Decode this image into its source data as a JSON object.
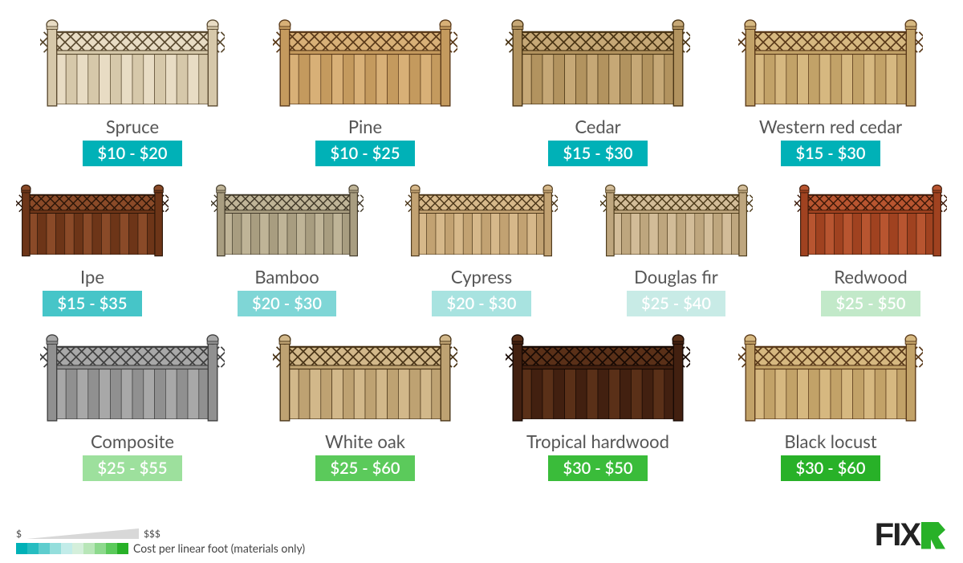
{
  "legend": {
    "low_symbol": "$",
    "high_symbol": "$$$",
    "caption": "Cost per linear foot (materials only)",
    "swatches": [
      "#00b1b7",
      "#26bdc1",
      "#5ecdce",
      "#94dedc",
      "#c2ece9",
      "#d4efdb",
      "#b8e6b8",
      "#8dd98d",
      "#5bca5b",
      "#28b128"
    ]
  },
  "logo_text": "FIX",
  "rows": [
    [
      {
        "name": "Spruce",
        "price": "$10 - $20",
        "price_bg": "#00b1b7",
        "wood_light": "#e8dcc4",
        "wood_dark": "#d6c8aa",
        "line": "#5a4a30"
      },
      {
        "name": "Pine",
        "price": "$10 - $25",
        "price_bg": "#00b1b7",
        "wood_light": "#d8b077",
        "wood_dark": "#c49a5e",
        "line": "#5a3a1a"
      },
      {
        "name": "Cedar",
        "price": "$15 - $30",
        "price_bg": "#00b1b7",
        "wood_light": "#c6a876",
        "wood_dark": "#b2935f",
        "line": "#4a3515"
      },
      {
        "name": "Western red cedar",
        "price": "$15 - $30",
        "price_bg": "#00b1b7",
        "wood_light": "#d6b880",
        "wood_dark": "#c2a268",
        "line": "#5a3a1a"
      }
    ],
    [
      {
        "name": "Ipe",
        "price": "$15 - $35",
        "price_bg": "#46c5c8",
        "wood_light": "#8a4a28",
        "wood_dark": "#6d3518",
        "line": "#2a1508"
      },
      {
        "name": "Bamboo",
        "price": "$20 - $30",
        "price_bg": "#7fd6d6",
        "wood_light": "#bfb497",
        "wood_dark": "#a89d80",
        "line": "#403828"
      },
      {
        "name": "Cypress",
        "price": "$20 - $30",
        "price_bg": "#a8e3e0",
        "wood_light": "#d6b88a",
        "wood_dark": "#c2a272",
        "line": "#4a3518"
      },
      {
        "name": "Douglas fir",
        "price": "$25 - $40",
        "price_bg": "#c8ebe6",
        "wood_light": "#d2bc98",
        "wood_dark": "#bea67e",
        "line": "#4a3818"
      },
      {
        "name": "Redwood",
        "price": "$25 - $50",
        "price_bg": "#c2e9c9",
        "wood_light": "#b85530",
        "wood_dark": "#a04220",
        "line": "#3a1808"
      }
    ],
    [
      {
        "name": "Composite",
        "price": "$25 - $55",
        "price_bg": "#9de09d",
        "wood_light": "#a8a8a8",
        "wood_dark": "#909090",
        "line": "#404040"
      },
      {
        "name": "White oak",
        "price": "$25 - $60",
        "price_bg": "#5bca5b",
        "wood_light": "#d2b88a",
        "wood_dark": "#bea272",
        "line": "#4a3518"
      },
      {
        "name": "Tropical hardwood",
        "price": "$30 - $50",
        "price_bg": "#3abc3a",
        "wood_light": "#5a3018",
        "wood_dark": "#422010",
        "line": "#180a04"
      },
      {
        "name": "Black locust",
        "price": "$30 - $60",
        "price_bg": "#28b128",
        "wood_light": "#d6b880",
        "wood_dark": "#c2a268",
        "line": "#5a3a1a"
      }
    ]
  ]
}
